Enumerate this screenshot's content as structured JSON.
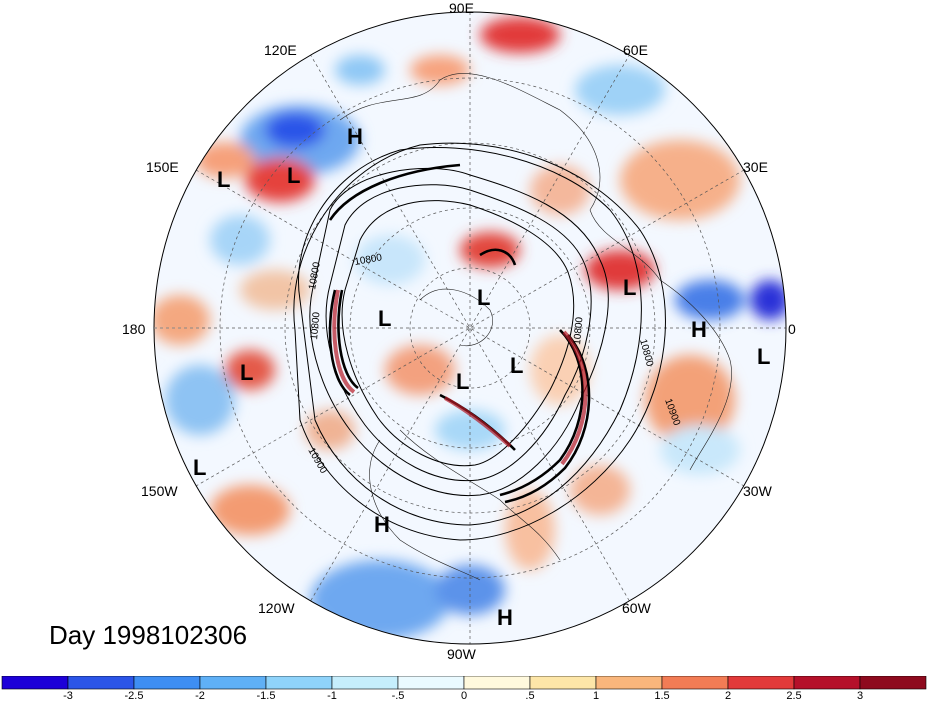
{
  "map": {
    "projection": "north polar stereographic",
    "longitude_labels": [
      {
        "id": "lon-90e",
        "text": "90E"
      },
      {
        "id": "lon-60e",
        "text": "60E"
      },
      {
        "id": "lon-120e",
        "text": "120E"
      },
      {
        "id": "lon-150e",
        "text": "150E"
      },
      {
        "id": "lon-30e",
        "text": "30E"
      },
      {
        "id": "lon-180",
        "text": "180"
      },
      {
        "id": "lon-0",
        "text": "0"
      },
      {
        "id": "lon-150w",
        "text": "150W"
      },
      {
        "id": "lon-30w",
        "text": "30W"
      },
      {
        "id": "lon-120w",
        "text": "120W"
      },
      {
        "id": "lon-60w",
        "text": "60W"
      },
      {
        "id": "lon-90w",
        "text": "90W"
      }
    ],
    "pressure_centers": [
      {
        "id": "h-east-asia",
        "text": "H"
      },
      {
        "id": "l-west-pacific-1",
        "text": "L"
      },
      {
        "id": "l-west-pacific-2",
        "text": "L"
      },
      {
        "id": "l-arctic",
        "text": "L"
      },
      {
        "id": "l-siberia",
        "text": "L"
      },
      {
        "id": "l-europe",
        "text": "L"
      },
      {
        "id": "h-atlantic-east",
        "text": "H"
      },
      {
        "id": "l-africa",
        "text": "L"
      },
      {
        "id": "l-pacific-central",
        "text": "L"
      },
      {
        "id": "l-hudson",
        "text": "L"
      },
      {
        "id": "l-greenland",
        "text": "L"
      },
      {
        "id": "l-north-pacific",
        "text": "L"
      },
      {
        "id": "h-east-pacific",
        "text": "H"
      },
      {
        "id": "h-caribbean",
        "text": "H"
      }
    ],
    "contour_labels": [
      {
        "id": "c1",
        "text": "10800"
      },
      {
        "id": "c2",
        "text": "10800"
      },
      {
        "id": "c3",
        "text": "10800"
      },
      {
        "id": "c4",
        "text": "10800"
      },
      {
        "id": "c5",
        "text": "10800"
      },
      {
        "id": "c6",
        "text": "10900"
      },
      {
        "id": "c7",
        "text": "10900"
      }
    ],
    "day_label": "Day 1998102306"
  },
  "colorbar": {
    "ticks": [
      "-3",
      "-2.5",
      "-2",
      "-1.5",
      "-1",
      "-.5",
      "0",
      ".5",
      "1",
      "1.5",
      "2",
      "2.5",
      "3"
    ],
    "colors": [
      "#1d00d8",
      "#2b55e8",
      "#3e8ef3",
      "#5fb0f6",
      "#8fd3fa",
      "#c6eefc",
      "#eafaff",
      "#fff9dd",
      "#fde6a8",
      "#f9b67c",
      "#f27c55",
      "#e23a3a",
      "#b5102a",
      "#8e0a1e"
    ]
  }
}
